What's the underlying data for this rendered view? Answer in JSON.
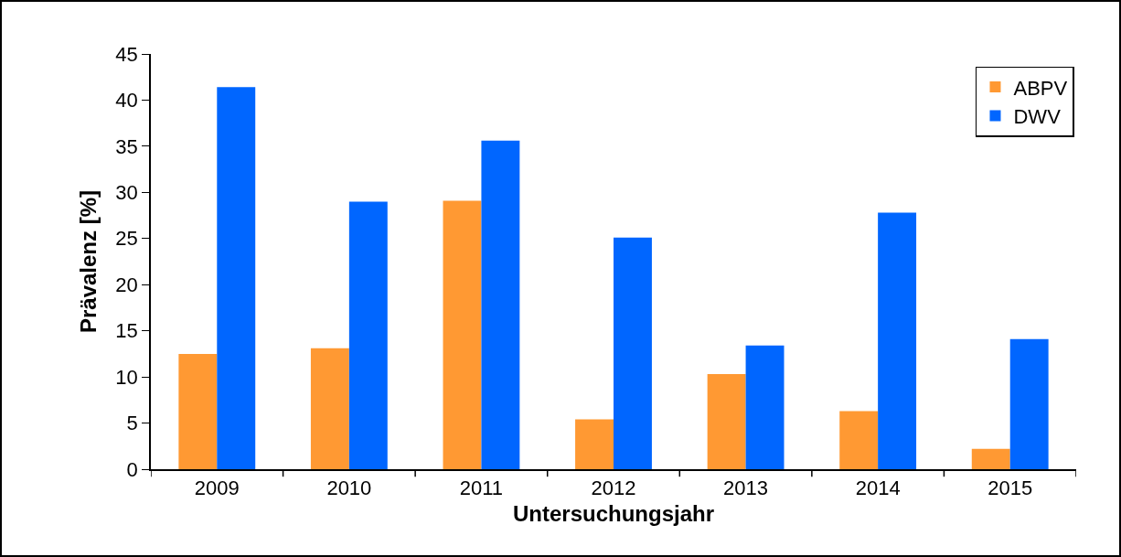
{
  "chart_data": {
    "type": "bar",
    "xlabel": "Untersuchungsjahr",
    "ylabel": "Prävalenz [%]",
    "categories": [
      "2009",
      "2010",
      "2011",
      "2012",
      "2013",
      "2014",
      "2015"
    ],
    "series": [
      {
        "name": "ABPV",
        "color": "#ff9933",
        "values": [
          12.5,
          13.1,
          29.1,
          5.4,
          10.3,
          6.3,
          2.2
        ]
      },
      {
        "name": "DWV",
        "color": "#0066ff",
        "values": [
          41.4,
          29.0,
          35.6,
          25.1,
          13.4,
          27.8,
          14.1
        ]
      }
    ],
    "ylim": [
      0,
      45
    ],
    "yticks": [
      0,
      5,
      10,
      15,
      20,
      25,
      30,
      35,
      40,
      45
    ],
    "grid": false,
    "legend": "top right"
  }
}
